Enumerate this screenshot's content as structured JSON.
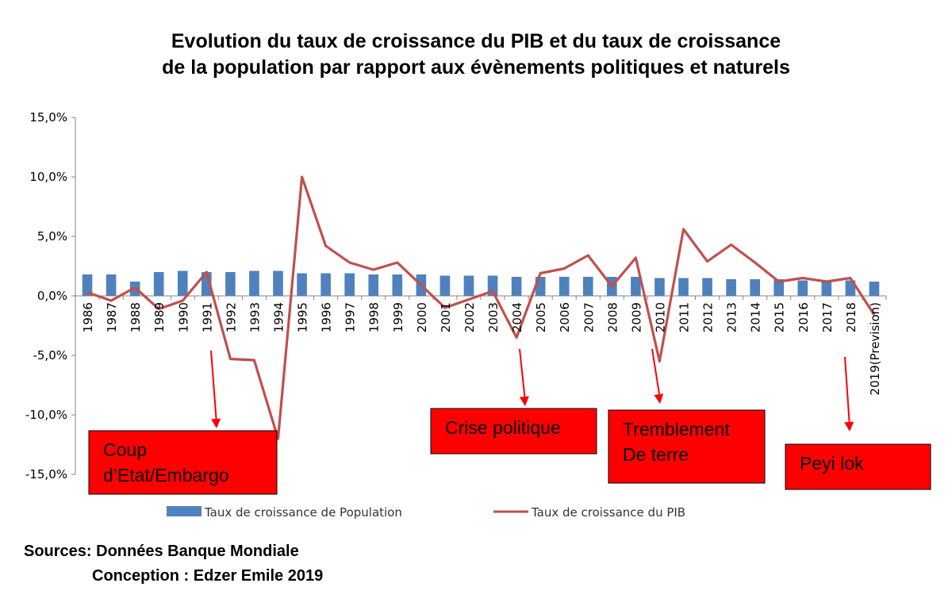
{
  "chart_data": {
    "type": "bar",
    "title_lines": [
      "Evolution du taux de croissance du PIB et du taux de croissance",
      "de la population par rapport aux évènements politiques et naturels"
    ],
    "categories": [
      "1986",
      "1987",
      "1988",
      "1989",
      "1990",
      "1991",
      "1992",
      "1993",
      "1994",
      "1995",
      "1996",
      "1997",
      "1998",
      "1999",
      "2000",
      "2001",
      "2002",
      "2003",
      "2004",
      "2005",
      "2006",
      "2007",
      "2008",
      "2009",
      "2010",
      "2011",
      "2012",
      "2013",
      "2014",
      "2015",
      "2016",
      "2017",
      "2018",
      "2019(Prevision)"
    ],
    "y_ticks": [
      "15,0%",
      "10,0%",
      "5,0%",
      "0,0%",
      "-5,0%",
      "-10,0%",
      "-15,0%"
    ],
    "ylim": [
      -15,
      15
    ],
    "grid": false,
    "legend_position": "bottom",
    "series": [
      {
        "name": "Taux de croissance de Population",
        "type": "bar",
        "color": "#4f81bd",
        "values": [
          1.8,
          1.8,
          1.2,
          2.0,
          2.1,
          2.0,
          2.0,
          2.1,
          2.1,
          1.9,
          1.9,
          1.9,
          1.8,
          1.8,
          1.8,
          1.7,
          1.7,
          1.7,
          1.6,
          1.6,
          1.6,
          1.6,
          1.6,
          1.6,
          1.5,
          1.5,
          1.5,
          1.4,
          1.4,
          1.4,
          1.3,
          1.3,
          1.3,
          1.2
        ]
      },
      {
        "name": "Taux de croissance du PIB",
        "type": "line",
        "color": "#c0504d",
        "values": [
          0.3,
          -0.4,
          0.7,
          -1.1,
          -0.4,
          2.0,
          -5.3,
          -5.4,
          -12.0,
          10.0,
          4.2,
          2.8,
          2.2,
          2.8,
          0.9,
          -1.0,
          -0.3,
          0.4,
          -3.5,
          1.9,
          2.3,
          3.4,
          0.8,
          3.2,
          -5.5,
          5.6,
          2.9,
          4.3,
          2.8,
          1.2,
          1.5,
          1.2,
          1.5,
          -1.6
        ]
      }
    ],
    "annotations": [
      {
        "lines": [
          "Coup",
          "d’Etat/Embargo"
        ],
        "arrow_from_year": "1991"
      },
      {
        "lines": [
          "Crise politique"
        ],
        "arrow_from_year": "2004"
      },
      {
        "lines": [
          "Tremblement",
          "De terre"
        ],
        "arrow_from_year": "2010"
      },
      {
        "lines": [
          "Peyi lok"
        ],
        "arrow_from_year": "2018"
      }
    ],
    "annotation_color": "#ff0000",
    "footer": {
      "sources": "Sources: Données Banque Mondiale",
      "conception": "Conception : Edzer Emile 2019"
    }
  }
}
